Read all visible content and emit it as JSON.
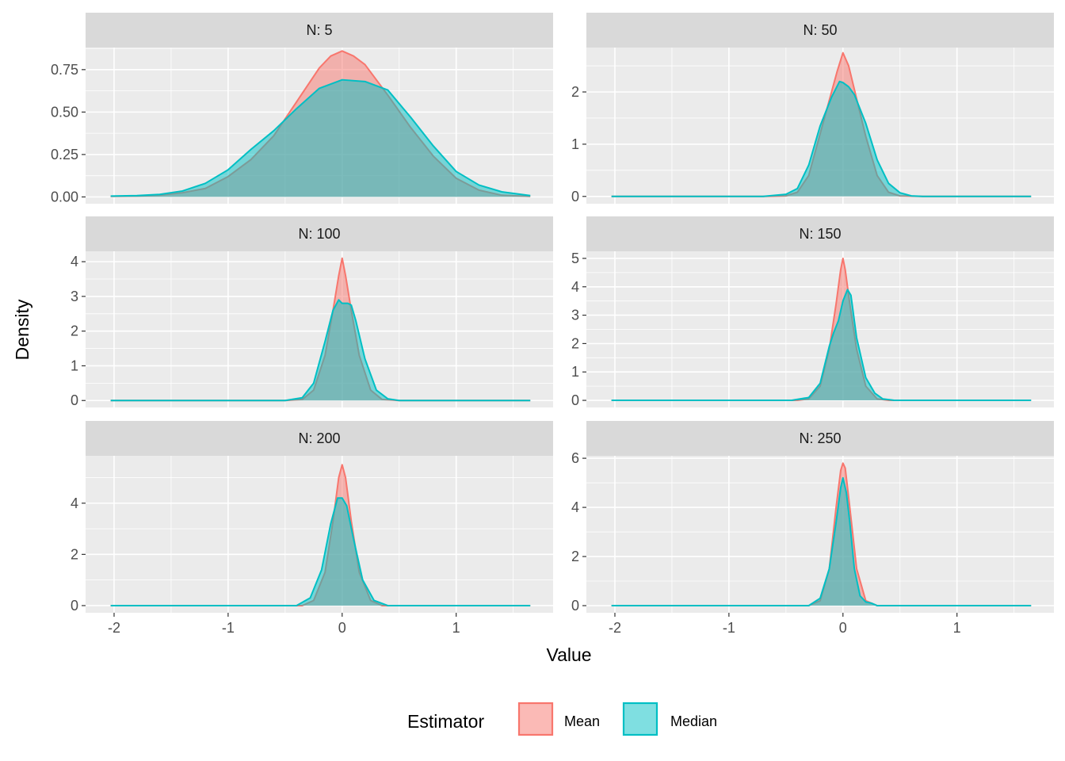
{
  "chart_data": {
    "type": "area",
    "chart_kind": "faceted density plot",
    "xlabel": "Value",
    "ylabel": "Density",
    "xlim": [
      -2.25,
      1.85
    ],
    "x_ticks": [
      -2,
      -1,
      0,
      1
    ],
    "legend": {
      "title": "Estimator",
      "position": "bottom",
      "entries": [
        "Mean",
        "Median"
      ]
    },
    "colors": {
      "Mean": "#F8766D",
      "Median": "#00BFC4",
      "overlap": "#7fadad",
      "panel_bg": "#ebebeb",
      "strip_bg": "#d9d9d9",
      "grid": "#ffffff"
    },
    "x_range": [
      -2.03,
      1.65
    ],
    "facets": [
      {
        "label": "N: 5",
        "ylim": [
          -0.04,
          0.88
        ],
        "y_ticks": [
          0,
          0.25,
          0.5,
          0.75
        ],
        "y_tick_labels": [
          "0.00",
          "0.25",
          "0.50",
          "0.75"
        ],
        "series": [
          {
            "name": "Mean",
            "x": [
              -2.03,
              -1.8,
              -1.6,
              -1.4,
              -1.2,
              -1.0,
              -0.8,
              -0.6,
              -0.4,
              -0.2,
              -0.1,
              0.0,
              0.1,
              0.2,
              0.4,
              0.6,
              0.8,
              1.0,
              1.2,
              1.4,
              1.65
            ],
            "y": [
              0.003,
              0.005,
              0.01,
              0.025,
              0.05,
              0.12,
              0.22,
              0.36,
              0.56,
              0.76,
              0.83,
              0.86,
              0.83,
              0.78,
              0.6,
              0.41,
              0.24,
              0.11,
              0.04,
              0.01,
              0.003
            ]
          },
          {
            "name": "Median",
            "x": [
              -2.03,
              -1.8,
              -1.6,
              -1.4,
              -1.2,
              -1.0,
              -0.8,
              -0.6,
              -0.4,
              -0.2,
              0.0,
              0.2,
              0.4,
              0.6,
              0.8,
              1.0,
              1.2,
              1.4,
              1.65
            ],
            "y": [
              0.005,
              0.008,
              0.015,
              0.035,
              0.08,
              0.16,
              0.28,
              0.39,
              0.52,
              0.64,
              0.69,
              0.68,
              0.63,
              0.47,
              0.3,
              0.15,
              0.07,
              0.03,
              0.008
            ]
          }
        ]
      },
      {
        "label": "N: 50",
        "ylim": [
          -0.14,
          2.85
        ],
        "y_ticks": [
          0,
          1,
          2
        ],
        "y_tick_labels": [
          "0",
          "1",
          "2"
        ],
        "series": [
          {
            "name": "Mean",
            "x": [
              -2.03,
              -0.7,
              -0.5,
              -0.4,
              -0.3,
              -0.2,
              -0.1,
              -0.05,
              0.0,
              0.05,
              0.1,
              0.2,
              0.3,
              0.4,
              0.5,
              0.7,
              1.65
            ],
            "y": [
              0,
              0,
              0.01,
              0.08,
              0.4,
              1.2,
              2.0,
              2.4,
              2.75,
              2.5,
              2.05,
              1.15,
              0.4,
              0.08,
              0.01,
              0,
              0
            ]
          },
          {
            "name": "Median",
            "x": [
              -2.03,
              -0.7,
              -0.5,
              -0.4,
              -0.3,
              -0.2,
              -0.1,
              -0.03,
              0.0,
              0.05,
              0.1,
              0.2,
              0.3,
              0.4,
              0.5,
              0.6,
              0.7,
              1.65
            ],
            "y": [
              0,
              0,
              0.04,
              0.15,
              0.6,
              1.35,
              1.9,
              2.2,
              2.18,
              2.1,
              1.95,
              1.4,
              0.7,
              0.25,
              0.07,
              0.01,
              0,
              0
            ]
          }
        ]
      },
      {
        "label": "N: 100",
        "ylim": [
          -0.2,
          4.3
        ],
        "y_ticks": [
          0,
          1,
          2,
          3,
          4
        ],
        "y_tick_labels": [
          "0",
          "1",
          "2",
          "3",
          "4"
        ],
        "series": [
          {
            "name": "Mean",
            "x": [
              -2.03,
              -0.5,
              -0.35,
              -0.25,
              -0.15,
              -0.08,
              -0.03,
              0.0,
              0.03,
              0.08,
              0.15,
              0.25,
              0.35,
              0.5,
              1.65
            ],
            "y": [
              0,
              0,
              0.03,
              0.3,
              1.3,
              2.6,
              3.6,
              4.1,
              3.6,
              2.6,
              1.3,
              0.3,
              0.03,
              0,
              0
            ]
          },
          {
            "name": "Median",
            "x": [
              -2.03,
              -0.5,
              -0.35,
              -0.25,
              -0.15,
              -0.08,
              -0.03,
              0.0,
              0.05,
              0.08,
              0.12,
              0.2,
              0.3,
              0.4,
              0.5,
              1.65
            ],
            "y": [
              0,
              0,
              0.08,
              0.5,
              1.7,
              2.6,
              2.9,
              2.8,
              2.8,
              2.75,
              2.3,
              1.2,
              0.3,
              0.05,
              0,
              0
            ]
          }
        ]
      },
      {
        "label": "N: 150",
        "ylim": [
          -0.25,
          5.25
        ],
        "y_ticks": [
          0,
          1,
          2,
          3,
          4,
          5
        ],
        "y_tick_labels": [
          "0",
          "1",
          "2",
          "3",
          "4",
          "5"
        ],
        "series": [
          {
            "name": "Mean",
            "x": [
              -2.03,
              -0.4,
              -0.3,
              -0.2,
              -0.12,
              -0.06,
              -0.02,
              0.0,
              0.02,
              0.06,
              0.12,
              0.2,
              0.3,
              0.4,
              1.65
            ],
            "y": [
              0,
              0,
              0.05,
              0.5,
              1.8,
              3.4,
              4.6,
              5.0,
              4.6,
              3.4,
              1.8,
              0.5,
              0.05,
              0,
              0
            ]
          },
          {
            "name": "Median",
            "x": [
              -2.03,
              -0.45,
              -0.3,
              -0.2,
              -0.12,
              -0.08,
              -0.04,
              0.0,
              0.04,
              0.07,
              0.12,
              0.2,
              0.28,
              0.35,
              0.45,
              1.65
            ],
            "y": [
              0,
              0,
              0.1,
              0.6,
              1.9,
              2.4,
              2.8,
              3.5,
              3.9,
              3.7,
              2.2,
              0.8,
              0.25,
              0.05,
              0,
              0
            ]
          }
        ]
      },
      {
        "label": "N: 200",
        "ylim": [
          -0.28,
          5.85
        ],
        "y_ticks": [
          0,
          2,
          4
        ],
        "y_tick_labels": [
          "0",
          "2",
          "4"
        ],
        "series": [
          {
            "name": "Mean",
            "x": [
              -2.03,
              -0.35,
              -0.25,
              -0.15,
              -0.08,
              -0.03,
              0.0,
              0.03,
              0.08,
              0.15,
              0.25,
              0.35,
              1.65
            ],
            "y": [
              0,
              0,
              0.2,
              1.3,
              3.3,
              5.0,
              5.5,
              5.0,
              3.3,
              1.3,
              0.2,
              0,
              0
            ]
          },
          {
            "name": "Median",
            "x": [
              -2.03,
              -0.4,
              -0.28,
              -0.18,
              -0.1,
              -0.04,
              0.0,
              0.04,
              0.1,
              0.18,
              0.28,
              0.4,
              1.65
            ],
            "y": [
              0,
              0,
              0.3,
              1.4,
              3.2,
              4.2,
              4.2,
              3.9,
              2.6,
              1.0,
              0.2,
              0,
              0
            ]
          }
        ]
      },
      {
        "label": "N: 250",
        "ylim": [
          -0.29,
          6.1
        ],
        "y_ticks": [
          0,
          2,
          4,
          6
        ],
        "y_tick_labels": [
          "0",
          "2",
          "4",
          "6"
        ],
        "series": [
          {
            "name": "Mean",
            "x": [
              -2.03,
              -0.3,
              -0.2,
              -0.12,
              -0.06,
              -0.02,
              0.0,
              0.02,
              0.06,
              0.12,
              0.2,
              0.3,
              1.65
            ],
            "y": [
              0,
              0,
              0.2,
              1.5,
              4.0,
              5.5,
              5.8,
              5.6,
              4.0,
              1.5,
              0.2,
              0,
              0
            ]
          },
          {
            "name": "Median",
            "x": [
              -2.03,
              -0.3,
              -0.2,
              -0.12,
              -0.06,
              -0.02,
              0.0,
              0.03,
              0.06,
              0.1,
              0.15,
              0.2,
              0.25,
              0.3,
              1.65
            ],
            "y": [
              0,
              0,
              0.3,
              1.5,
              3.4,
              4.8,
              5.2,
              4.6,
              3.4,
              1.5,
              0.4,
              0.15,
              0.1,
              0,
              0
            ]
          }
        ]
      }
    ]
  }
}
